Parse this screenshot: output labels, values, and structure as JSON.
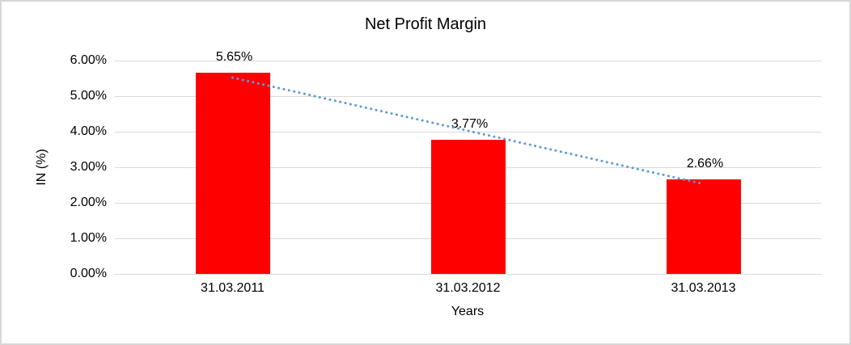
{
  "chart_data": {
    "type": "bar",
    "title": "Net Profit Margin",
    "xlabel": "Years",
    "ylabel": "IN (%)",
    "categories": [
      "31.03.2011",
      "31.03.2012",
      "31.03.2013"
    ],
    "values": [
      5.65,
      3.77,
      2.66
    ],
    "value_labels": [
      "5.65%",
      "3.77%",
      "2.66%"
    ],
    "ytick_labels": [
      "0.00%",
      "1.00%",
      "2.00%",
      "3.00%",
      "4.00%",
      "5.00%",
      "6.00%"
    ],
    "ylim": [
      0,
      6
    ],
    "grid": true,
    "legend": "none",
    "bar_color": "#FF0000",
    "gridline_color": "#d9d9d9",
    "text_color": "#000000",
    "trendline": {
      "type": "linear",
      "style": "dotted",
      "color": "#5B9BD5"
    }
  }
}
